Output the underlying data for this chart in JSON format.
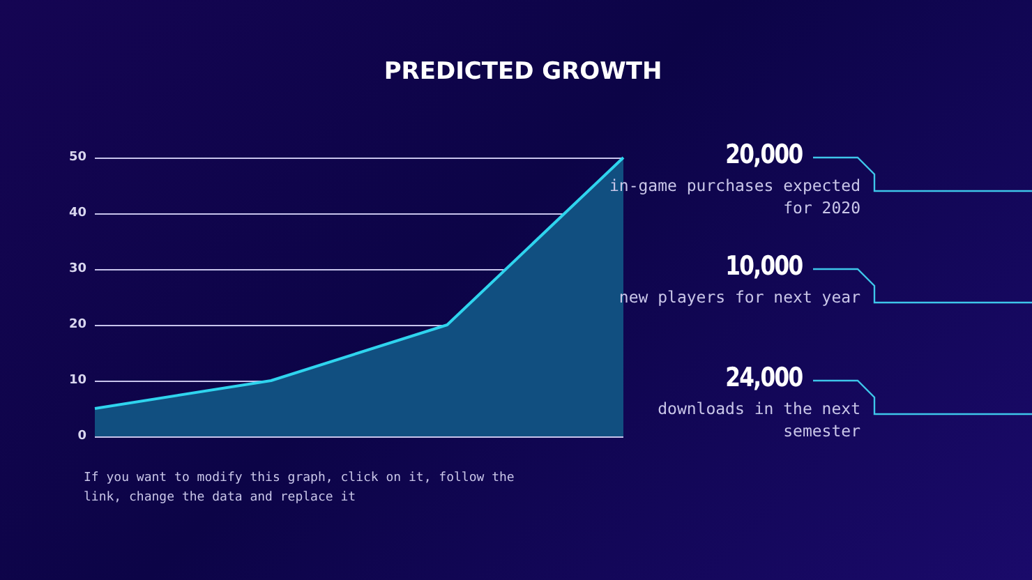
{
  "chart_data": {
    "type": "area",
    "title": "PREDICTED GROWTH",
    "categories": [
      null,
      null,
      null,
      null
    ],
    "series": [
      {
        "color": "#2fd4ee",
        "values": [
          5,
          10,
          20,
          50
        ]
      }
    ],
    "ylim": [
      0,
      50
    ],
    "yticks": [
      0,
      10,
      20,
      30,
      40,
      50
    ],
    "grid": "y",
    "marker": "none",
    "annotations": [
      "20,000",
      "in-game purchases expected for 2020",
      "10,000",
      "new players for next year",
      "24,000",
      "downloads in the next semester",
      "If you want to modify this graph, click on it, follow the link, change the data and replace it"
    ]
  }
}
